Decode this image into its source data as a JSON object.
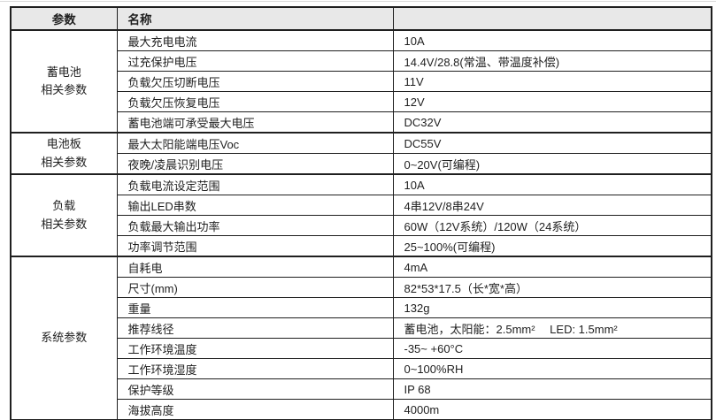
{
  "table": {
    "headers": {
      "category": "参数",
      "name": "名称",
      "value": ""
    },
    "sections": [
      {
        "category": "蓄电池\n相关参数",
        "rows": [
          {
            "name": "最大充电电流",
            "value": "10A"
          },
          {
            "name": "过充保护电压",
            "value": "14.4V/28.8(常温、带温度补偿)"
          },
          {
            "name": "负载欠压切断电压",
            "value": "11V"
          },
          {
            "name": "负载欠压恢复电压",
            "value": "12V"
          },
          {
            "name": "蓄电池端可承受最大电压",
            "value": "DC32V"
          }
        ]
      },
      {
        "category": "电池板\n相关参数",
        "rows": [
          {
            "name": "最大太阳能端电压Voc",
            "value": "DC55V"
          },
          {
            "name": "夜晚/凌晨识别电压",
            "value": "0~20V(可编程)"
          }
        ]
      },
      {
        "category": "负载\n相关参数",
        "rows": [
          {
            "name": "负载电流设定范围",
            "value": "10A"
          },
          {
            "name": "输出LED串数",
            "value": "4串12V/8串24V"
          },
          {
            "name": "负载最大输出功率",
            "value": "60W（12V系统）/120W（24系统）"
          },
          {
            "name": "功率调节范围",
            "value": "25~100%(可编程)"
          }
        ]
      },
      {
        "category": "系统参数",
        "rows": [
          {
            "name": "自耗电",
            "value": "4mA"
          },
          {
            "name": "尺寸(mm)",
            "value": "82*53*17.5（长*宽*高）"
          },
          {
            "name": "重量",
            "value": "132g"
          },
          {
            "name": "推荐线径",
            "value": "蓄电池，太阳能：2.5mm²　 LED: 1.5mm²"
          },
          {
            "name": "工作环境温度",
            "value": "-35~ +60°C"
          },
          {
            "name": "工作环境湿度",
            "value": "0~100%RH"
          },
          {
            "name": "保护等级",
            "value": "IP 68"
          },
          {
            "name": "海拔高度",
            "value": "4000m"
          }
        ]
      }
    ]
  }
}
